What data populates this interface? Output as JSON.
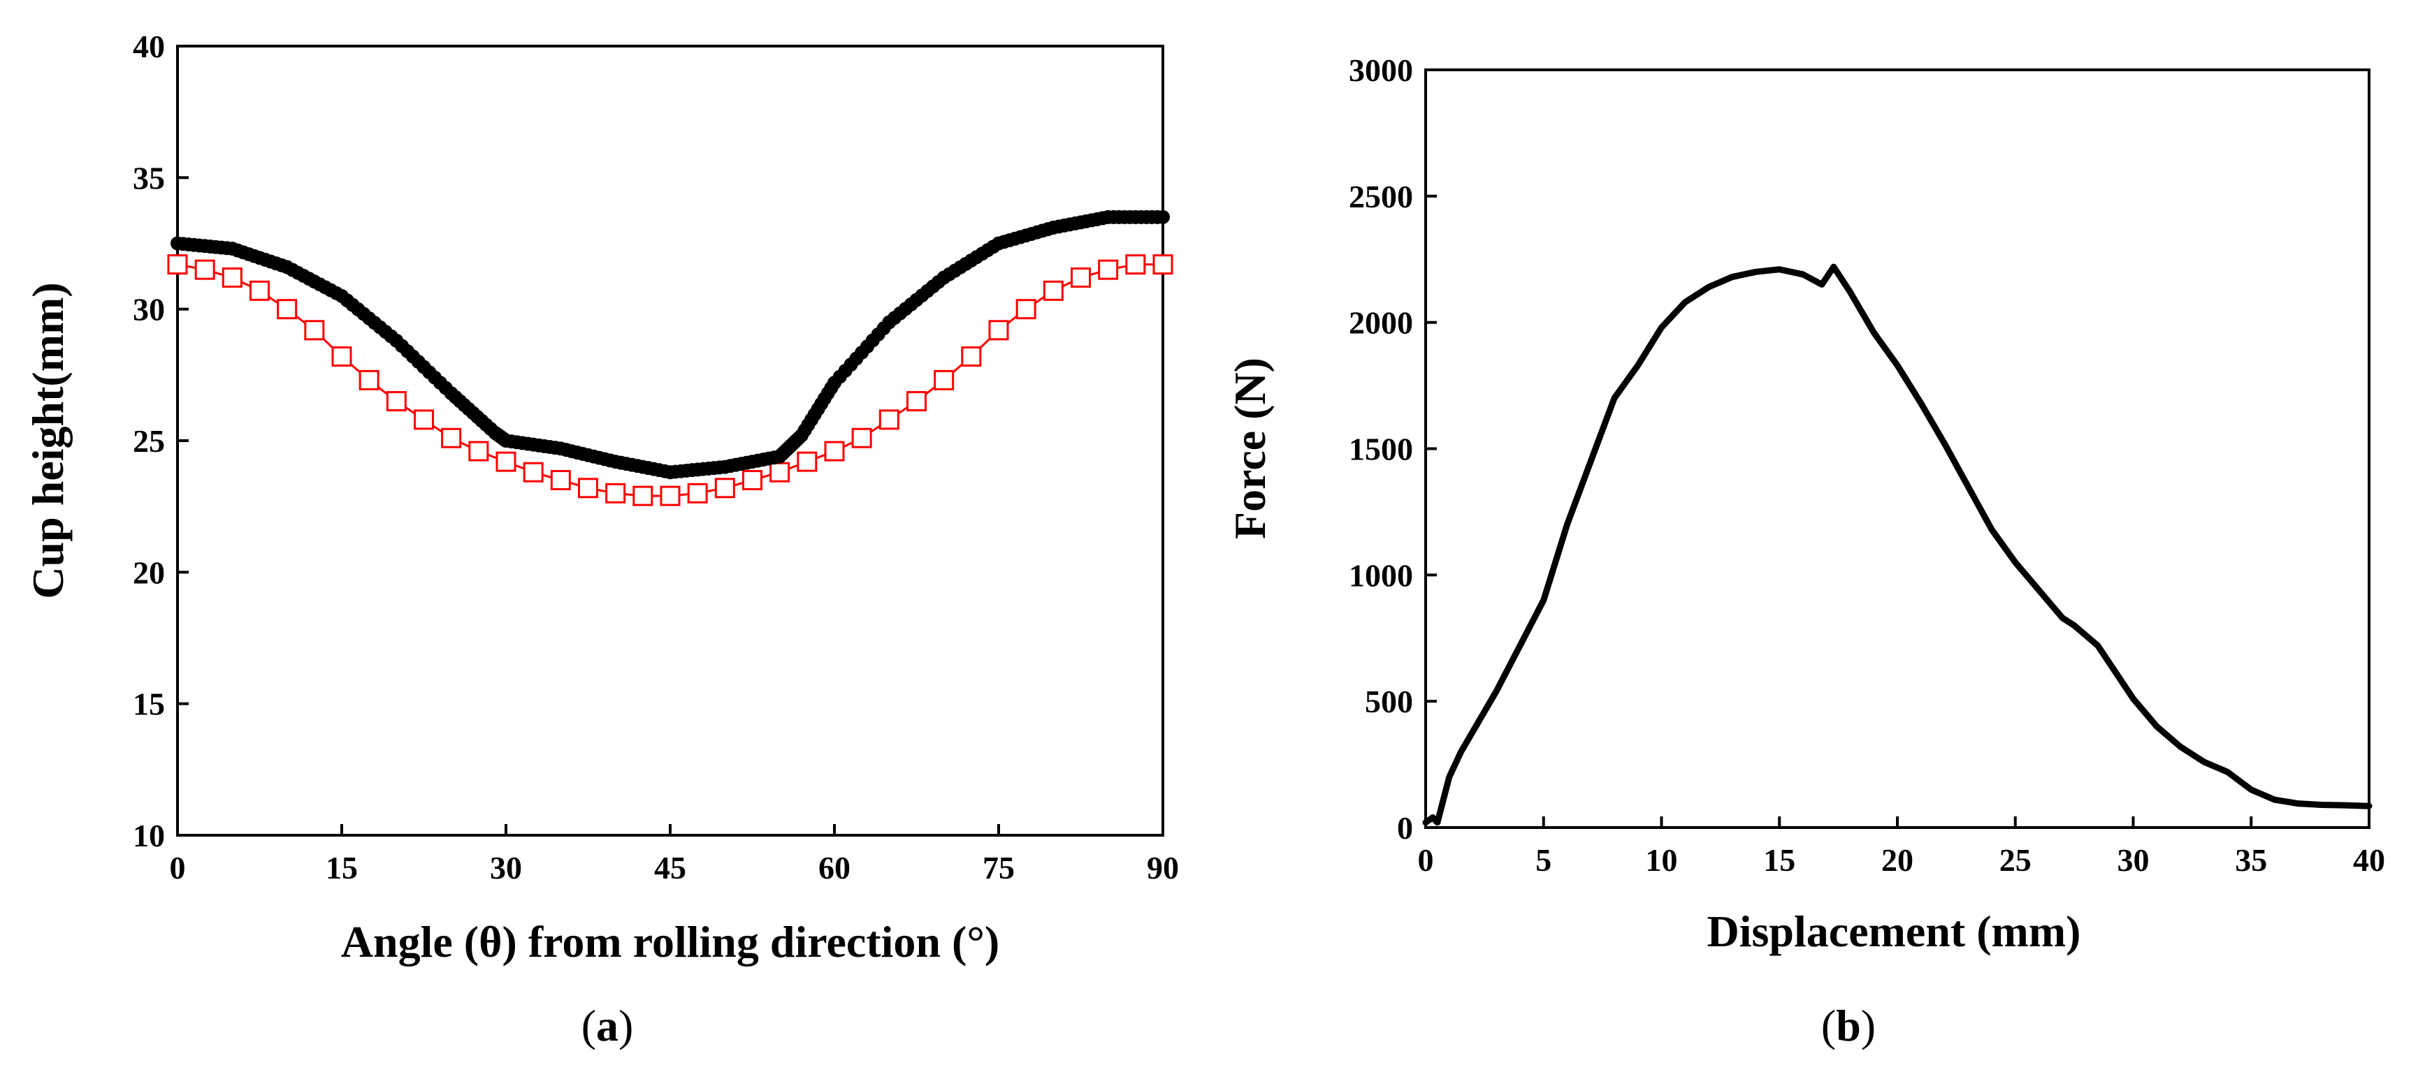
{
  "chart_data": [
    {
      "panel": "a",
      "panel_label_open": "(",
      "panel_label_letter": "a",
      "panel_label_close": ")",
      "type": "scatter",
      "title": "",
      "xlabel": "Angle (θ) from rolling direction (°)",
      "ylabel": "Cup height(mm)",
      "xlim": [
        0,
        90
      ],
      "ylim": [
        10,
        40
      ],
      "xticks": [
        "0",
        "15",
        "30",
        "45",
        "60",
        "75",
        "90"
      ],
      "yticks": [
        "10",
        "15",
        "20",
        "25",
        "30",
        "35",
        "40"
      ],
      "series": [
        {
          "name": "series 1 (filled circles)",
          "color": "#000000",
          "marker": "filled-circle",
          "x": [
            0,
            5,
            10,
            15,
            20,
            25,
            29,
            30,
            35,
            40,
            45,
            50,
            55,
            57,
            60,
            65,
            70,
            75,
            80,
            85,
            90
          ],
          "y": [
            32.5,
            32.3,
            31.6,
            30.5,
            28.8,
            26.8,
            25.3,
            25.0,
            24.7,
            24.2,
            23.8,
            24.0,
            24.4,
            25.2,
            27.2,
            29.5,
            31.2,
            32.5,
            33.1,
            33.5,
            33.5
          ]
        },
        {
          "name": "series 2 (open squares)",
          "color": "#ff0000",
          "marker": "open-square",
          "x": [
            0,
            2.5,
            5,
            7.5,
            10,
            12.5,
            15,
            17.5,
            20,
            22.5,
            25,
            27.5,
            30,
            32.5,
            35,
            37.5,
            40,
            42.5,
            45,
            47.5,
            50,
            52.5,
            55,
            57.5,
            60,
            62.5,
            65,
            67.5,
            70,
            72.5,
            75,
            77.5,
            80,
            82.5,
            85,
            87.5,
            90
          ],
          "y": [
            31.7,
            31.5,
            31.2,
            30.7,
            30.0,
            29.2,
            28.2,
            27.3,
            26.5,
            25.8,
            25.1,
            24.6,
            24.2,
            23.8,
            23.5,
            23.2,
            23.0,
            22.9,
            22.9,
            23.0,
            23.2,
            23.5,
            23.8,
            24.2,
            24.6,
            25.1,
            25.8,
            26.5,
            27.3,
            28.2,
            29.2,
            30.0,
            30.7,
            31.2,
            31.5,
            31.7,
            31.7
          ]
        }
      ]
    },
    {
      "panel": "b",
      "panel_label_open": "(",
      "panel_label_letter": "b",
      "panel_label_close": ")",
      "type": "line",
      "title": "",
      "xlabel": "Displacement (mm)",
      "ylabel": "Force (N)",
      "xlim": [
        0,
        40
      ],
      "ylim": [
        0,
        3000
      ],
      "xticks": [
        "0",
        "5",
        "10",
        "15",
        "20",
        "25",
        "30",
        "35",
        "40"
      ],
      "yticks": [
        "0",
        "500",
        "1000",
        "1500",
        "2000",
        "2500",
        "3000"
      ],
      "series": [
        {
          "name": "Force-displacement",
          "color": "#000000",
          "x": [
            0,
            0.3,
            0.5,
            1,
            1.5,
            2,
            3,
            4,
            5,
            5.5,
            6,
            7,
            8,
            9,
            10,
            11,
            12,
            13,
            14,
            15,
            16,
            16.8,
            17.3,
            18,
            19,
            20,
            21,
            22,
            23,
            24,
            25,
            26,
            27,
            27.5,
            28,
            28.5,
            29,
            30,
            31,
            32,
            33,
            34,
            35,
            36,
            37,
            38,
            39,
            40
          ],
          "y": [
            20,
            40,
            20,
            200,
            300,
            380,
            540,
            720,
            900,
            1050,
            1200,
            1450,
            1700,
            1830,
            1980,
            2080,
            2140,
            2180,
            2200,
            2210,
            2190,
            2150,
            2220,
            2120,
            1960,
            1830,
            1680,
            1520,
            1350,
            1180,
            1050,
            940,
            830,
            800,
            760,
            720,
            650,
            510,
            400,
            320,
            260,
            220,
            150,
            110,
            95,
            90,
            88,
            85
          ]
        }
      ]
    }
  ]
}
